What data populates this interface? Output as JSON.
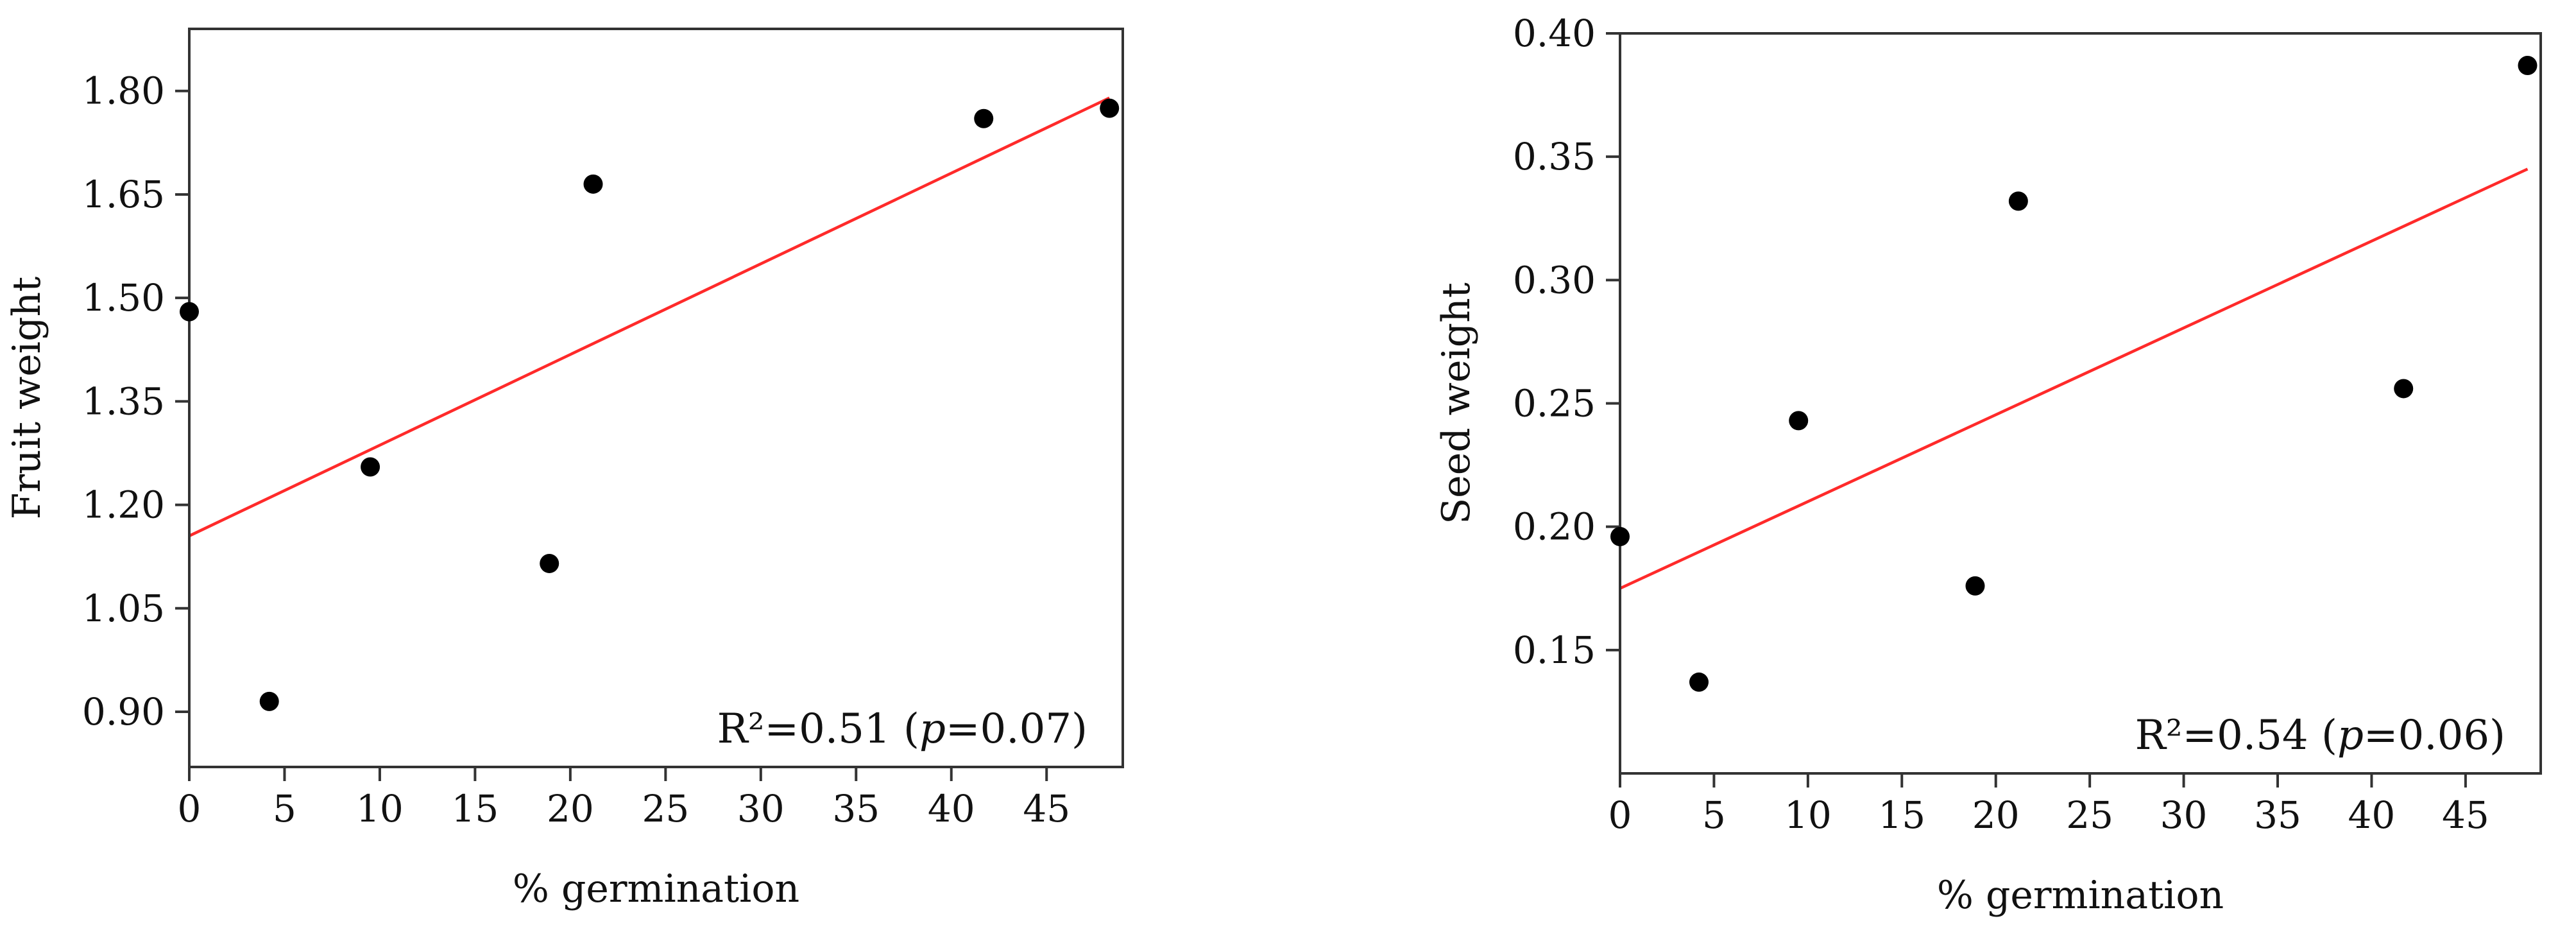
{
  "chart_data": [
    {
      "type": "scatter",
      "xlabel": "% germination",
      "ylabel": "Fruit weight",
      "xlim": [
        0,
        49
      ],
      "ylim": [
        0.82,
        1.89
      ],
      "x_ticks": [
        0,
        5,
        10,
        15,
        20,
        25,
        30,
        35,
        40,
        45
      ],
      "y_ticks": [
        0.9,
        1.05,
        1.2,
        1.35,
        1.5,
        1.65,
        1.8
      ],
      "y_tick_decimals": 2,
      "grid": false,
      "points": [
        {
          "x": 0,
          "y": 1.48
        },
        {
          "x": 4.2,
          "y": 0.915
        },
        {
          "x": 9.5,
          "y": 1.255
        },
        {
          "x": 18.9,
          "y": 1.115
        },
        {
          "x": 21.2,
          "y": 1.665
        },
        {
          "x": 41.7,
          "y": 1.76
        },
        {
          "x": 48.3,
          "y": 1.775
        }
      ],
      "fit_line": {
        "x": [
          0,
          48.3
        ],
        "y": [
          1.155,
          1.79
        ],
        "color": "#ff2a2a"
      },
      "annotation": {
        "prefix": "R²=0.51 (",
        "italic": "p",
        "suffix": "=0.07)"
      }
    },
    {
      "type": "scatter",
      "xlabel": "% germination",
      "ylabel": "Seed weight",
      "xlim": [
        0,
        49
      ],
      "ylim": [
        0.1,
        0.4
      ],
      "x_ticks": [
        0,
        5,
        10,
        15,
        20,
        25,
        30,
        35,
        40,
        45
      ],
      "y_ticks": [
        0.15,
        0.2,
        0.25,
        0.3,
        0.35,
        0.4
      ],
      "y_tick_decimals": 2,
      "grid": false,
      "points": [
        {
          "x": 0,
          "y": 0.196
        },
        {
          "x": 4.2,
          "y": 0.137
        },
        {
          "x": 9.5,
          "y": 0.243
        },
        {
          "x": 18.9,
          "y": 0.176
        },
        {
          "x": 21.2,
          "y": 0.332
        },
        {
          "x": 41.7,
          "y": 0.256
        },
        {
          "x": 48.3,
          "y": 0.387
        }
      ],
      "fit_line": {
        "x": [
          0,
          48.3
        ],
        "y": [
          0.175,
          0.345
        ],
        "color": "#ff2a2a"
      },
      "annotation": {
        "prefix": "R²=0.54 (",
        "italic": "p",
        "suffix": "=0.06)"
      }
    }
  ]
}
